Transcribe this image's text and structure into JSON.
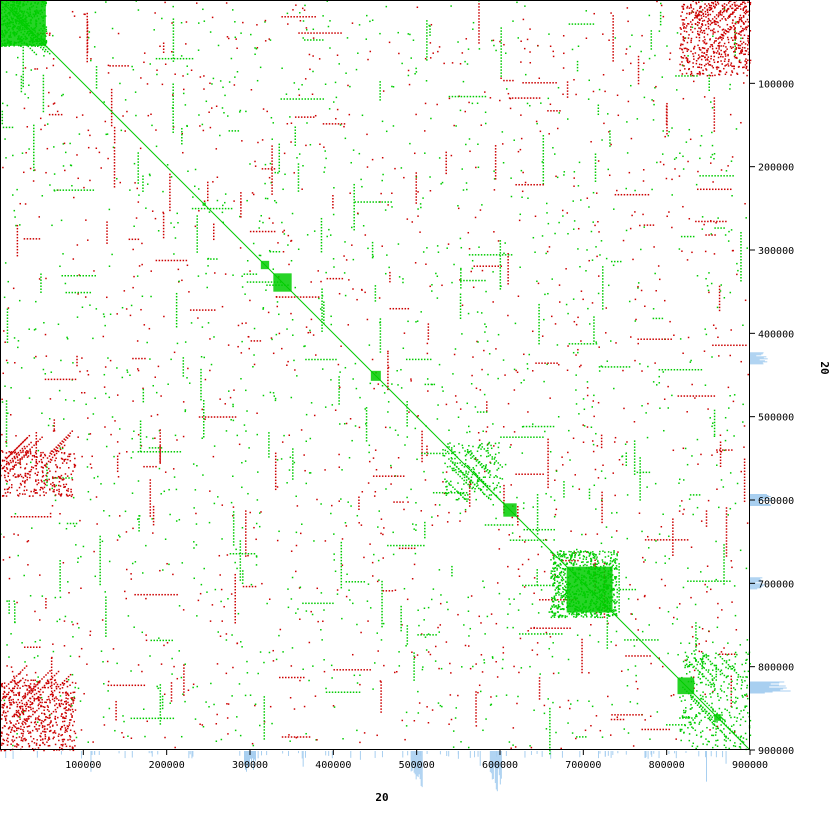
{
  "chart_data": {
    "type": "scatter",
    "title": "",
    "xlabel": "20",
    "ylabel": "20",
    "xlim": [
      0,
      900000
    ],
    "ylim": [
      0,
      900000
    ],
    "y_inverted": true,
    "grid": false,
    "x_ticks": [
      100000,
      200000,
      300000,
      400000,
      500000,
      600000,
      700000,
      800000,
      900000
    ],
    "y_ticks": [
      100000,
      200000,
      300000,
      400000,
      500000,
      600000,
      700000,
      800000,
      900000
    ],
    "x_tick_labels": [
      "100000",
      "200000",
      "300000",
      "400000",
      "500000",
      "600000",
      "700000",
      "800000",
      "900000"
    ],
    "y_tick_labels": [
      "100000",
      "200000",
      "300000",
      "400000",
      "500000",
      "600000",
      "700000",
      "800000",
      "900000"
    ],
    "colors": {
      "forward": "#00cc00",
      "reverse": "#cc0000",
      "coverage": "#a8cff0"
    },
    "series": [
      {
        "name": "forward",
        "diagonal": [
          [
            0,
            0
          ],
          [
            900000,
            900000
          ]
        ],
        "blocks": [
          {
            "x": [
              243000,
              247000
            ],
            "y": [
              243000,
              247000
            ]
          },
          {
            "x": [
              313000,
              323000
            ],
            "y": [
              313000,
              323000
            ]
          },
          {
            "x": [
              328000,
              350000
            ],
            "y": [
              328000,
              350000
            ]
          },
          {
            "x": [
              445000,
              457000
            ],
            "y": [
              445000,
              457000
            ]
          },
          {
            "x": [
              604000,
              620000
            ],
            "y": [
              604000,
              620000
            ]
          },
          {
            "x": [
              680000,
              735000
            ],
            "y": [
              680000,
              735000
            ]
          },
          {
            "x": [
              813000,
              833000
            ],
            "y": [
              813000,
              833000
            ]
          },
          {
            "x": [
              857000,
              865000
            ],
            "y": [
              857000,
              865000
            ]
          },
          {
            "x": [
              0,
              55000
            ],
            "y": [
              0,
              55000
            ]
          }
        ]
      },
      {
        "name": "reverse",
        "regions": [
          {
            "x": [
              815000,
              900000
            ],
            "y": [
              0,
              90000
            ]
          },
          {
            "x": [
              0,
              90000
            ],
            "y": [
              815000,
              900000
            ]
          },
          {
            "x": [
              0,
              90000
            ],
            "y": [
              540000,
              595000
            ]
          },
          {
            "x": [
              680000,
              730000
            ],
            "y": [
              680000,
              730000
            ]
          }
        ]
      }
    ]
  }
}
